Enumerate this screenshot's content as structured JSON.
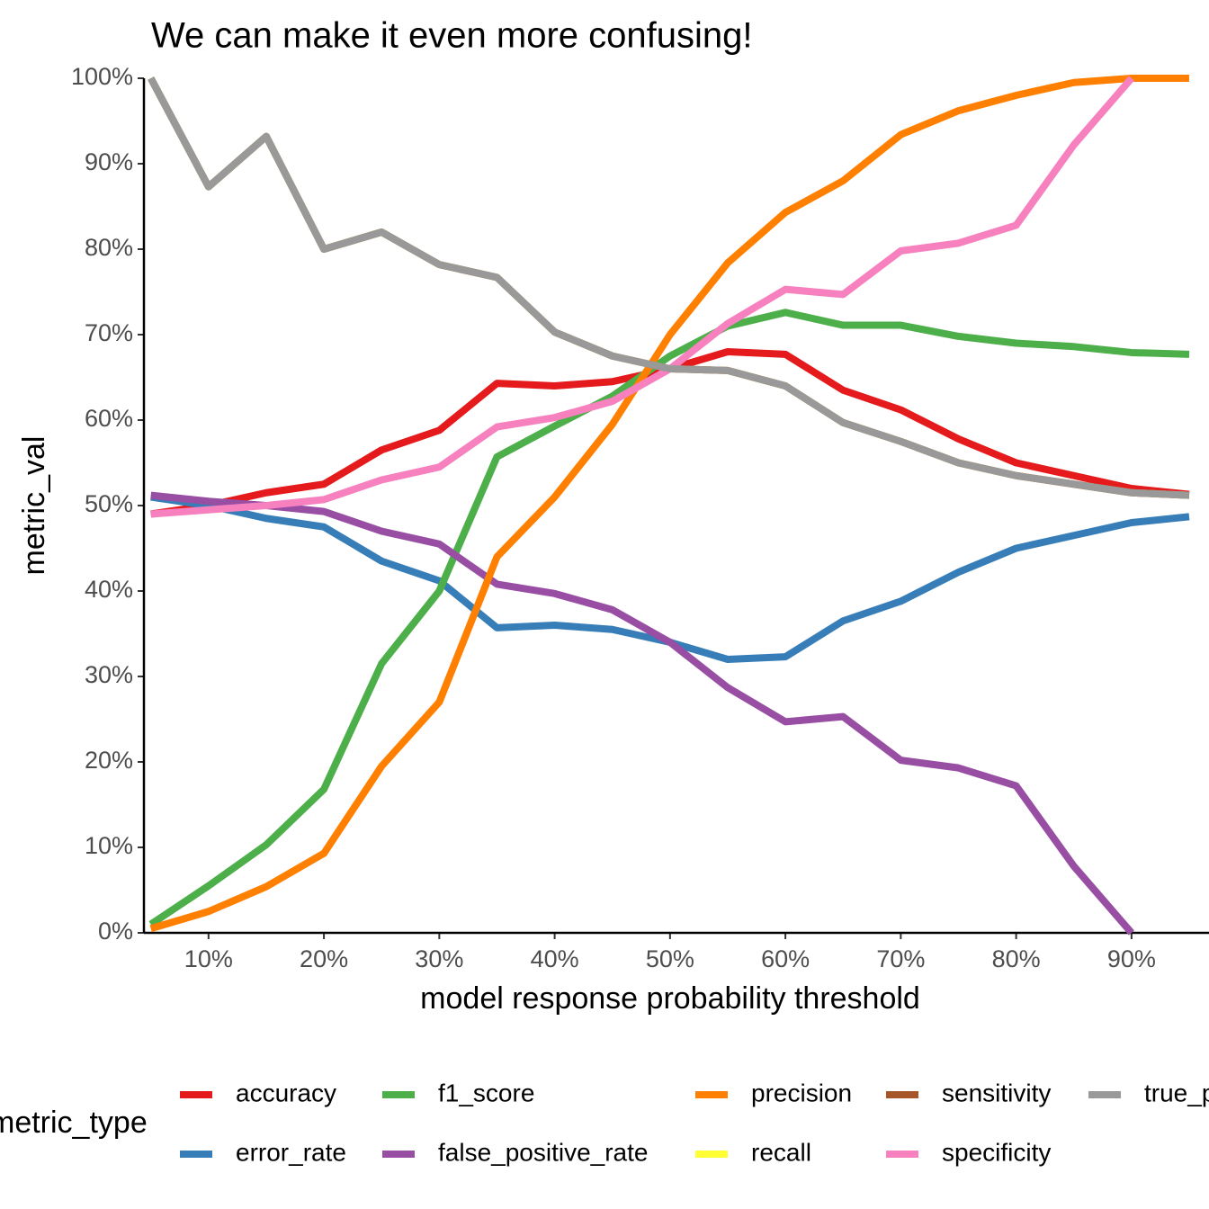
{
  "chart_data": {
    "type": "line",
    "title": "We can make it even more confusing!",
    "x_label": "model response probability threshold",
    "y_label": "metric_val",
    "legend_title": "metric_type",
    "x": [
      0.05,
      0.1,
      0.15,
      0.2,
      0.25,
      0.3,
      0.35,
      0.4,
      0.45,
      0.5,
      0.55,
      0.6,
      0.65,
      0.7,
      0.75,
      0.8,
      0.85,
      0.9,
      0.95
    ],
    "xlim": [
      0.044,
      0.95
    ],
    "xticks": [
      {
        "value": 0.1,
        "label": "10%"
      },
      {
        "value": 0.2,
        "label": "20%"
      },
      {
        "value": 0.3,
        "label": "30%"
      },
      {
        "value": 0.4,
        "label": "40%"
      },
      {
        "value": 0.5,
        "label": "50%"
      },
      {
        "value": 0.6,
        "label": "60%"
      },
      {
        "value": 0.7,
        "label": "70%"
      },
      {
        "value": 0.8,
        "label": "80%"
      },
      {
        "value": 0.9,
        "label": "90%"
      }
    ],
    "ylim": [
      0,
      1
    ],
    "yticks": [
      {
        "value": 0,
        "label": "0%"
      },
      {
        "value": 0.1,
        "label": "10%"
      },
      {
        "value": 0.2,
        "label": "20%"
      },
      {
        "value": 0.3,
        "label": "30%"
      },
      {
        "value": 0.4,
        "label": "40%"
      },
      {
        "value": 0.5,
        "label": "50%"
      },
      {
        "value": 0.6,
        "label": "60%"
      },
      {
        "value": 0.7,
        "label": "70%"
      },
      {
        "value": 0.8,
        "label": "80%"
      },
      {
        "value": 0.9,
        "label": "90%"
      },
      {
        "value": 1,
        "label": "100%"
      }
    ],
    "grid": false,
    "legend": "bottom",
    "series": [
      {
        "name": "accuracy",
        "color": "#e41a1c",
        "values": [
          0.49,
          0.5,
          0.515,
          0.525,
          0.565,
          0.588,
          0.643,
          0.64,
          0.645,
          0.66,
          0.68,
          0.677,
          0.635,
          0.612,
          0.578,
          0.55,
          0.535,
          0.52,
          0.513
        ]
      },
      {
        "name": "error_rate",
        "color": "#377eb8",
        "values": [
          0.51,
          0.5,
          0.485,
          0.475,
          0.435,
          0.412,
          0.357,
          0.36,
          0.355,
          0.34,
          0.32,
          0.323,
          0.365,
          0.388,
          0.422,
          0.45,
          0.465,
          0.48,
          0.487
        ]
      },
      {
        "name": "f1_score",
        "color": "#4daf4a",
        "values": [
          0.01,
          0.055,
          0.103,
          0.168,
          0.315,
          0.4,
          0.557,
          0.593,
          0.628,
          0.675,
          0.71,
          0.726,
          0.711,
          0.711,
          0.698,
          0.69,
          0.686,
          0.679,
          0.677
        ]
      },
      {
        "name": "false_positive_rate",
        "color": "#984ea3",
        "values": [
          0.512,
          0.505,
          0.5,
          0.493,
          0.47,
          0.455,
          0.408,
          0.397,
          0.378,
          0.34,
          0.287,
          0.247,
          0.253,
          0.202,
          0.193,
          0.172,
          0.078,
          0.0,
          null
        ]
      },
      {
        "name": "precision",
        "color": "#ff7f00",
        "values": [
          0.005,
          0.025,
          0.054,
          0.093,
          0.195,
          0.27,
          0.44,
          0.51,
          0.595,
          0.7,
          0.784,
          0.843,
          0.88,
          0.934,
          0.962,
          0.98,
          0.995,
          1.0,
          1.0
        ]
      },
      {
        "name": "recall",
        "color": "#ffff33",
        "values": [
          1.0,
          0.873,
          0.932,
          0.8,
          0.82,
          0.782,
          0.767,
          0.703,
          0.675,
          0.66,
          0.658,
          0.64,
          0.597,
          0.575,
          0.55,
          0.535,
          0.525,
          0.515,
          0.512
        ]
      },
      {
        "name": "sensitivity",
        "color": "#a65628",
        "values": [
          1.0,
          0.873,
          0.932,
          0.8,
          0.82,
          0.782,
          0.767,
          0.703,
          0.675,
          0.66,
          0.658,
          0.64,
          0.597,
          0.575,
          0.55,
          0.535,
          0.525,
          0.515,
          0.512
        ]
      },
      {
        "name": "specificity",
        "color": "#f781bf",
        "values": [
          0.49,
          0.495,
          0.5,
          0.507,
          0.53,
          0.545,
          0.592,
          0.603,
          0.622,
          0.66,
          0.713,
          0.753,
          0.747,
          0.798,
          0.807,
          0.828,
          0.922,
          1.0,
          null
        ]
      },
      {
        "name": "true_positive_rate",
        "color": "#999999",
        "values": [
          1.0,
          0.873,
          0.932,
          0.8,
          0.82,
          0.782,
          0.767,
          0.703,
          0.675,
          0.66,
          0.658,
          0.64,
          0.597,
          0.575,
          0.55,
          0.535,
          0.525,
          0.515,
          0.512
        ]
      }
    ]
  }
}
